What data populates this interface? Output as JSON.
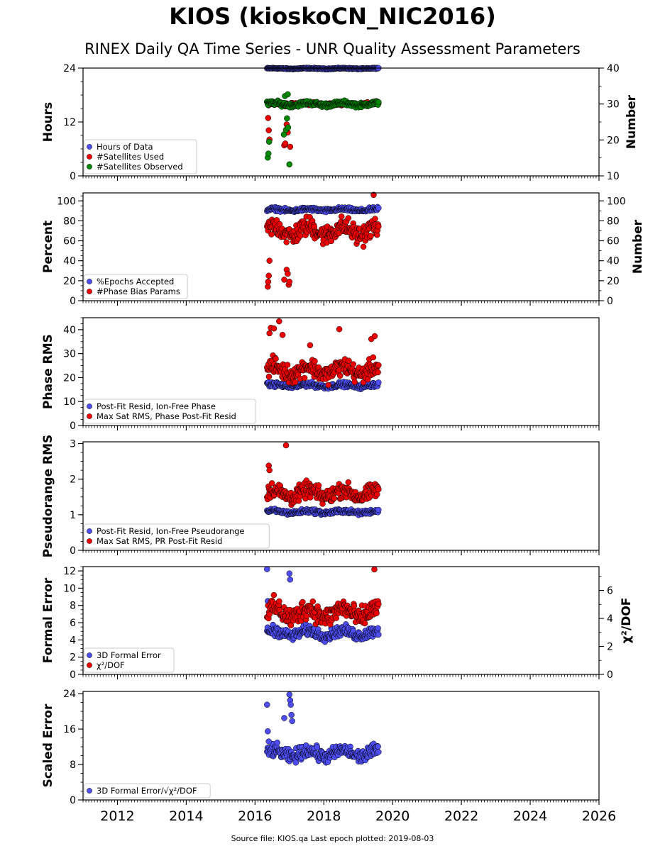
{
  "title": "KIOS (kioskoCN_NIC2016)",
  "subtitle": "RINEX Daily QA Time Series - UNR Quality Assessment Parameters",
  "footer": "Source file: KIOS.qa Last epoch plotted: 2019-08-03",
  "colors": {
    "blue": "#4d4df2",
    "red": "#ee0000",
    "green": "#008800",
    "edge": "#000000"
  },
  "chart_data": [
    {
      "type": "scatter",
      "ylabel": "Hours",
      "ylabel_right": "Number",
      "xlim": [
        2011.0,
        2026.0
      ],
      "xticks": [
        2012,
        2014,
        2016,
        2018,
        2020,
        2022,
        2024,
        2026
      ],
      "ylim": [
        0,
        24
      ],
      "yticks": [
        0,
        12,
        24
      ],
      "ylim_right": [
        10,
        40
      ],
      "yticks_right": [
        10,
        20,
        30,
        40
      ],
      "legend": "bottom-left",
      "series": [
        {
          "name": "Hours of Data",
          "color": "blue",
          "axis": "left",
          "x_range": [
            2016.35,
            2019.59
          ],
          "y_mean": 23.9,
          "y_spread": 0.1,
          "outliers": []
        },
        {
          "name": "#Satellites Used",
          "color": "red",
          "axis": "right",
          "x_range": [
            2016.35,
            2019.59
          ],
          "y_mean": 30.0,
          "y_spread": 0.4,
          "outliers": [
            [
              2016.38,
              26.1
            ],
            [
              2016.4,
              22.7
            ],
            [
              2016.42,
              20.1
            ],
            [
              2016.85,
              18.5
            ],
            [
              2016.92,
              24.3
            ],
            [
              2016.95,
              22.1
            ],
            [
              2017.02,
              18.1
            ],
            [
              2016.88,
              19.0
            ]
          ]
        },
        {
          "name": "#Satellites Observed",
          "color": "green",
          "axis": "right",
          "x_range": [
            2016.35,
            2019.59
          ],
          "y_mean": 30.0,
          "y_spread": 0.5,
          "outliers": [
            [
              2016.37,
              15.1
            ],
            [
              2016.39,
              16.2
            ],
            [
              2016.41,
              19.5
            ],
            [
              2016.84,
              21.5
            ],
            [
              2016.9,
              22.8
            ],
            [
              2016.93,
              26.0
            ],
            [
              2016.96,
              23.5
            ],
            [
              2017.0,
              13.2
            ],
            [
              2016.87,
              32.2
            ],
            [
              2016.95,
              32.7
            ]
          ]
        }
      ]
    },
    {
      "type": "scatter",
      "ylabel": "Percent",
      "ylabel_right": "Number",
      "xlim": [
        2011.0,
        2026.0
      ],
      "xticks": [
        2012,
        2014,
        2016,
        2018,
        2020,
        2022,
        2024,
        2026
      ],
      "ylim": [
        0,
        108
      ],
      "yticks": [
        0,
        20,
        40,
        60,
        80,
        100
      ],
      "ylim_right": [
        0,
        108
      ],
      "yticks_right": [
        0,
        20,
        40,
        60,
        80,
        100
      ],
      "legend": "bottom-left",
      "series": [
        {
          "name": "%Epochs Accepted",
          "color": "blue",
          "axis": "left",
          "x_range": [
            2016.35,
            2019.59
          ],
          "y_mean": 91,
          "y_spread": 1.5,
          "outliers": []
        },
        {
          "name": "#Phase Bias Params",
          "color": "red",
          "axis": "right",
          "x_range": [
            2016.35,
            2019.59
          ],
          "y_mean": 70,
          "y_spread": 8,
          "outliers": [
            [
              2016.37,
              14
            ],
            [
              2016.38,
              19
            ],
            [
              2016.4,
              25
            ],
            [
              2016.42,
              40
            ],
            [
              2016.85,
              21
            ],
            [
              2016.92,
              31
            ],
            [
              2016.95,
              27
            ],
            [
              2016.98,
              16
            ],
            [
              2017.0,
              19
            ],
            [
              2019.45,
              106
            ]
          ]
        }
      ]
    },
    {
      "type": "scatter",
      "ylabel": "Phase RMS",
      "xlim": [
        2011.0,
        2026.0
      ],
      "xticks": [
        2012,
        2014,
        2016,
        2018,
        2020,
        2022,
        2024,
        2026
      ],
      "ylim": [
        0,
        45
      ],
      "yticks": [
        0,
        10,
        20,
        30,
        40
      ],
      "legend": "bottom-left",
      "series": [
        {
          "name": "Post-Fit Resid, Ion-Free Phase",
          "color": "blue",
          "axis": "left",
          "x_range": [
            2016.35,
            2019.59
          ],
          "y_mean": 16.7,
          "y_spread": 0.8,
          "outliers": []
        },
        {
          "name": "Max Sat RMS, Phase Post-Fit Resid",
          "color": "red",
          "axis": "left",
          "x_range": [
            2016.35,
            2019.59
          ],
          "y_mean": 23,
          "y_spread": 3,
          "outliers": [
            [
              2016.42,
              38.5
            ],
            [
              2016.46,
              40.8
            ],
            [
              2016.55,
              40.5
            ],
            [
              2016.7,
              43.5
            ],
            [
              2016.8,
              37.8
            ],
            [
              2017.6,
              33.5
            ],
            [
              2018.45,
              40.2
            ],
            [
              2019.38,
              36.1
            ],
            [
              2019.48,
              37.3
            ]
          ]
        }
      ]
    },
    {
      "type": "scatter",
      "ylabel": "Pseudorange RMS",
      "xlim": [
        2011.0,
        2026.0
      ],
      "xticks": [
        2012,
        2014,
        2016,
        2018,
        2020,
        2022,
        2024,
        2026
      ],
      "ylim": [
        0,
        3.05
      ],
      "yticks": [
        0,
        1,
        2,
        3
      ],
      "legend": "bottom-left",
      "series": [
        {
          "name": "Post-Fit Resid, Ion-Free Pseudorange",
          "color": "blue",
          "axis": "left",
          "x_range": [
            2016.35,
            2019.59
          ],
          "y_mean": 1.08,
          "y_spread": 0.05,
          "outliers": []
        },
        {
          "name": "Max Sat RMS, PR Post-Fit Resid",
          "color": "red",
          "axis": "left",
          "x_range": [
            2016.35,
            2019.59
          ],
          "y_mean": 1.6,
          "y_spread": 0.18,
          "outliers": [
            [
              2016.9,
              2.95
            ],
            [
              2016.4,
              2.38
            ],
            [
              2016.42,
              2.25
            ]
          ]
        }
      ]
    },
    {
      "type": "scatter",
      "ylabel": "Formal Error",
      "ylabel_right": "χ²/DOF",
      "xlim": [
        2011.0,
        2026.0
      ],
      "xticks": [
        2012,
        2014,
        2016,
        2018,
        2020,
        2022,
        2024,
        2026
      ],
      "ylim": [
        0,
        12.5
      ],
      "yticks": [
        0,
        2,
        4,
        6,
        8,
        10,
        12
      ],
      "ylim_right": [
        0,
        7.7
      ],
      "yticks_right": [
        0,
        2,
        4,
        6
      ],
      "legend": "bottom-left",
      "series": [
        {
          "name": "3D Formal Error",
          "color": "blue",
          "axis": "left",
          "x_range": [
            2016.35,
            2019.59
          ],
          "y_mean": 4.8,
          "y_spread": 0.5,
          "outliers": [
            [
              2016.35,
              12.2
            ],
            [
              2016.37,
              8.5
            ],
            [
              2017.0,
              11.7
            ],
            [
              2017.02,
              11.0
            ]
          ]
        },
        {
          "name": "χ²/DOF",
          "color": "red",
          "axis": "right",
          "x_range": [
            2016.35,
            2019.59
          ],
          "y_mean": 4.4,
          "y_spread": 0.6,
          "outliers": [
            [
              2019.47,
              7.5
            ]
          ]
        }
      ]
    },
    {
      "type": "scatter",
      "ylabel": "Scaled Error",
      "xlim": [
        2011.0,
        2026.0
      ],
      "xticks": [
        2012,
        2014,
        2016,
        2018,
        2020,
        2022,
        2024,
        2026
      ],
      "ylim": [
        0,
        24.5
      ],
      "yticks": [
        0,
        8,
        16,
        24
      ],
      "legend": "bottom-left",
      "series": [
        {
          "name": "3D Formal Error/√χ²/DOF",
          "color": "blue",
          "axis": "left",
          "x_range": [
            2016.35,
            2019.59
          ],
          "y_mean": 10.5,
          "y_spread": 1.2,
          "outliers": [
            [
              2016.35,
              21.5
            ],
            [
              2016.37,
              15.5
            ],
            [
              2016.4,
              13.2
            ],
            [
              2016.85,
              18.5
            ],
            [
              2017.0,
              23.8
            ],
            [
              2017.02,
              22.5
            ],
            [
              2017.04,
              21.5
            ],
            [
              2017.06,
              19.2
            ],
            [
              2017.08,
              17.8
            ]
          ]
        }
      ]
    }
  ]
}
